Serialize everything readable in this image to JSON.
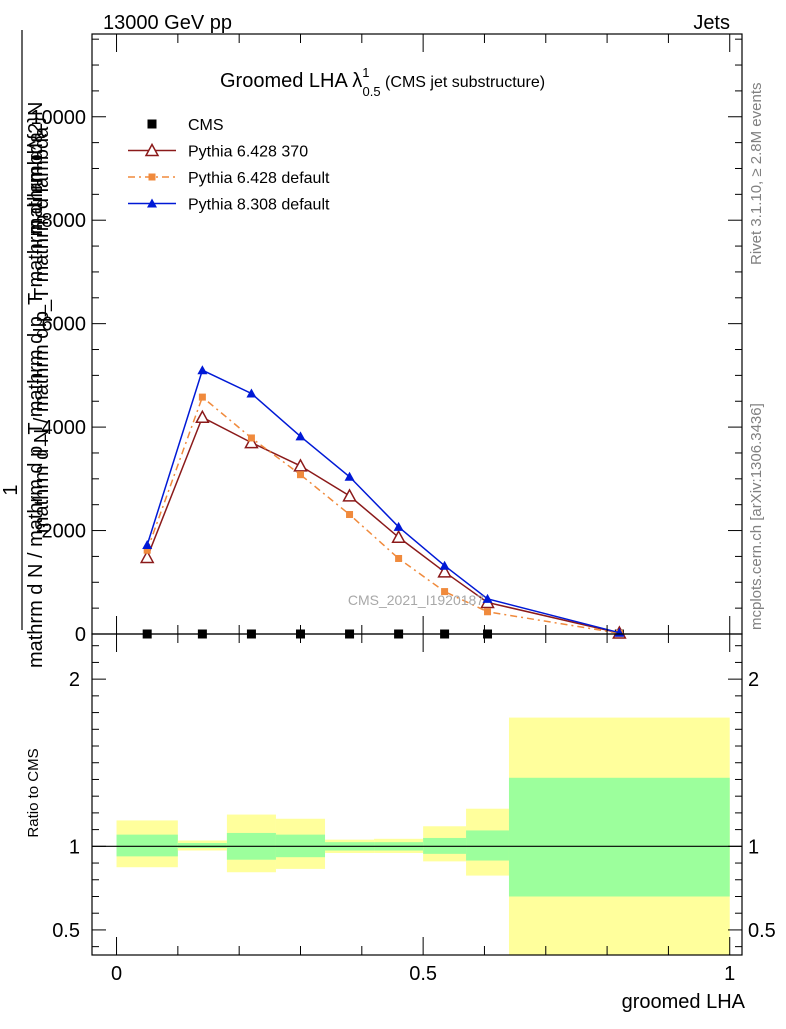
{
  "header": {
    "left": "13000 GeV pp",
    "right": "Jets"
  },
  "side_labels": {
    "rivet": "Rivet 3.1.10, ≥ 2.8M events",
    "mcplots": "mcplots.cern.ch [arXiv:1306.3436]"
  },
  "watermark": "CMS_2021_I1920187",
  "chart_data": [
    {
      "type": "line",
      "panel": "main",
      "title": {
        "main": "Groomed LHA ",
        "lambda": "λ",
        "sup": "1",
        "sub": "0.5",
        "paren": " (CMS jet substructure)"
      },
      "ylabel_numerator_one": "1",
      "ylabel_numerator": "mathrm d^{2}N",
      "ylabel_denominator": "mathrm d N / mathrm d p_T mathrm d p_T mathrm d lambda",
      "ylabel_overlap": "mathrm d N / mathrm d p_T mathrm d lambda",
      "xlim": [
        -0.04,
        1.02
      ],
      "ylim": [
        0,
        11600
      ],
      "yticks": [
        0,
        2000,
        4000,
        6000,
        8000,
        10000
      ],
      "ytick_labels": [
        "0",
        "2000",
        "4000",
        "6000",
        "8000",
        "10000"
      ],
      "legend_position": "top-left",
      "series": [
        {
          "name": "CMS",
          "marker": "square",
          "color": "#000000",
          "x": [
            0.05,
            0.14,
            0.22,
            0.3,
            0.38,
            0.46,
            0.535,
            0.605,
            0.82
          ],
          "y": [
            0,
            0,
            0,
            0,
            0,
            0,
            0,
            0,
            0
          ]
        },
        {
          "name": "Pythia 6.428 370",
          "marker": "triangle-open",
          "color": "#8b1a1a",
          "dash": "",
          "x": [
            0.05,
            0.14,
            0.22,
            0.3,
            0.38,
            0.46,
            0.535,
            0.605,
            0.82
          ],
          "y": [
            1480,
            4190,
            3700,
            3250,
            2670,
            1870,
            1200,
            610,
            20
          ]
        },
        {
          "name": "Pythia 6.428 default",
          "marker": "square-small",
          "color": "#f08a3c",
          "dash": "7,4,2,4",
          "x": [
            0.05,
            0.14,
            0.22,
            0.3,
            0.38,
            0.46,
            0.535,
            0.605,
            0.82
          ],
          "y": [
            1620,
            4580,
            3790,
            3080,
            2310,
            1460,
            820,
            430,
            15
          ]
        },
        {
          "name": "Pythia 8.308 default",
          "marker": "triangle-filled",
          "color": "#0019d6",
          "dash": "",
          "x": [
            0.05,
            0.14,
            0.22,
            0.3,
            0.38,
            0.46,
            0.535,
            0.605,
            0.82
          ],
          "y": [
            1720,
            5100,
            4650,
            3820,
            3040,
            2070,
            1320,
            680,
            25
          ]
        }
      ]
    },
    {
      "type": "area",
      "panel": "ratio",
      "ylabel": "Ratio to CMS",
      "xlabel": "groomed LHA",
      "xlim": [
        -0.04,
        1.02
      ],
      "ylim": [
        0.35,
        2.27
      ],
      "yticks": [
        0.5,
        1,
        2
      ],
      "ytick_labels": [
        "0.5",
        "1",
        "2"
      ],
      "xticks": [
        0,
        0.5,
        1
      ],
      "xtick_labels": [
        "0",
        "0.5",
        "1"
      ],
      "reference_line": 1,
      "bands": {
        "bins": [
          [
            0,
            0.1
          ],
          [
            0.1,
            0.18
          ],
          [
            0.18,
            0.26
          ],
          [
            0.26,
            0.34
          ],
          [
            0.34,
            0.42
          ],
          [
            0.42,
            0.5
          ],
          [
            0.5,
            0.57
          ],
          [
            0.57,
            0.64
          ],
          [
            0.64,
            1.0
          ]
        ],
        "stat_low": [
          0.94,
          0.99,
          0.92,
          0.935,
          0.975,
          0.975,
          0.955,
          0.915,
          0.7
        ],
        "stat_high": [
          1.07,
          1.02,
          1.08,
          1.07,
          1.025,
          1.025,
          1.05,
          1.095,
          1.41
        ],
        "total_low": [
          0.875,
          0.975,
          0.845,
          0.865,
          0.96,
          0.96,
          0.91,
          0.825,
          0.35
        ],
        "total_high": [
          1.155,
          1.035,
          1.19,
          1.165,
          1.04,
          1.045,
          1.12,
          1.225,
          1.77
        ],
        "stat_color": "#9cff9c",
        "total_color": "#ffff9c"
      }
    }
  ]
}
